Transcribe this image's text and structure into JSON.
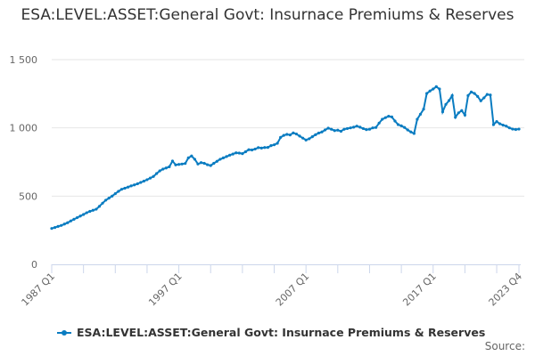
{
  "chart_data": {
    "type": "line",
    "title": "ESA:LEVEL:ASSET:General Govt: Insurnace Premiums & Reserves",
    "xlabel": "",
    "ylabel": "",
    "x_start": "1987 Q1",
    "x_end": "2023 Q4",
    "x_tick_labels": [
      "1987 Q1",
      "1997 Q1",
      "2007 Q1",
      "2017 Q1",
      "2023 Q4"
    ],
    "y_tick_labels": [
      "0",
      "500",
      "1 000",
      "1 500"
    ],
    "y_ticks": [
      0,
      500,
      1000,
      1500
    ],
    "ylim": [
      0,
      1500
    ],
    "grid": "horizontal",
    "legend_position": "bottom",
    "color": "#0a7cc1",
    "series": [
      {
        "name": "ESA:LEVEL:ASSET:General Govt: Insurnace Premiums & Reserves",
        "values": [
          263,
          270,
          278,
          285,
          295,
          305,
          318,
          330,
          342,
          354,
          365,
          378,
          388,
          396,
          404,
          425,
          448,
          470,
          485,
          500,
          518,
          535,
          550,
          558,
          566,
          575,
          582,
          590,
          600,
          610,
          620,
          632,
          644,
          665,
          685,
          698,
          706,
          715,
          757,
          729,
          732,
          735,
          739,
          780,
          794,
          770,
          735,
          745,
          740,
          730,
          724,
          740,
          755,
          770,
          780,
          790,
          800,
          808,
          817,
          815,
          811,
          825,
          840,
          838,
          845,
          855,
          852,
          856,
          857,
          870,
          876,
          887,
          930,
          945,
          952,
          948,
          963,
          955,
          940,
          925,
          911,
          920,
          935,
          950,
          962,
          970,
          985,
          998,
          990,
          980,
          983,
          975,
          990,
          995,
          1000,
          1005,
          1013,
          1005,
          995,
          987,
          990,
          1000,
          1003,
          1035,
          1063,
          1075,
          1085,
          1080,
          1050,
          1024,
          1015,
          1003,
          985,
          970,
          959,
          1063,
          1100,
          1137,
          1252,
          1270,
          1285,
          1302,
          1285,
          1118,
          1172,
          1200,
          1237,
          1078,
          1110,
          1127,
          1094,
          1237,
          1263,
          1252,
          1230,
          1198,
          1220,
          1245,
          1241,
          1024,
          1046,
          1030,
          1020,
          1013,
          1000,
          991,
          988,
          991
        ]
      }
    ],
    "source_label": "Source:"
  }
}
